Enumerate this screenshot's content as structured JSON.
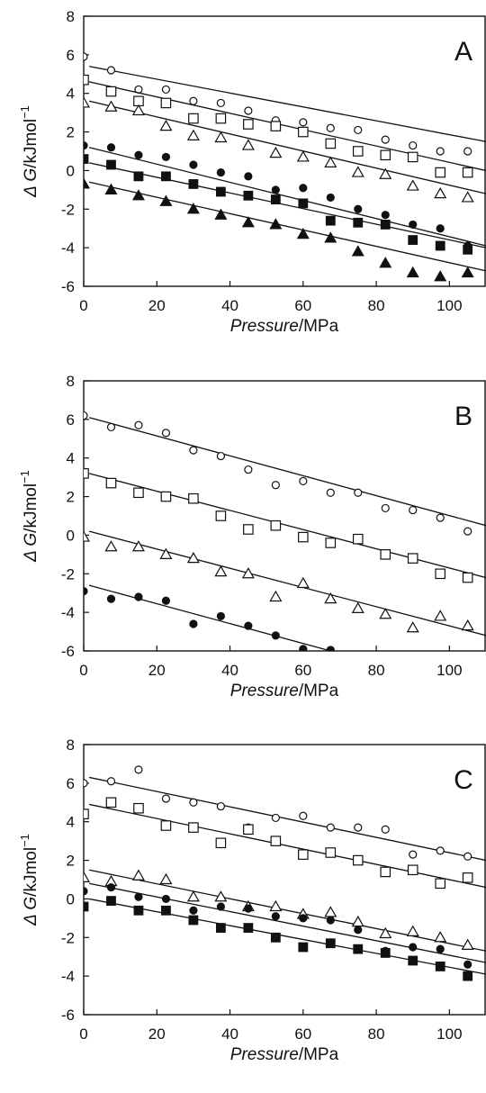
{
  "chart_data": [
    {
      "type": "scatter",
      "panel_label": "A",
      "xlabel_italic": "Pressure",
      "xlabel_unit": "/MPa",
      "ylabel_italic": "Δ G",
      "ylabel_unit": "/kJmol",
      "ylabel_exp": "−1",
      "xlim": [
        0,
        110
      ],
      "ylim": [
        -6,
        8
      ],
      "xticks": [
        "0",
        "20",
        "40",
        "60",
        "80",
        "100"
      ],
      "yticks": [
        "-6",
        "-4",
        "-2",
        "0",
        "2",
        "4",
        "6",
        "8"
      ],
      "grid": false,
      "series": [
        {
          "marker": "circle-open",
          "x": [
            0,
            7.5,
            15,
            22.5,
            30,
            37.5,
            45,
            52.5,
            60,
            67.5,
            75,
            82.5,
            90,
            97.5,
            105
          ],
          "y": [
            5.9,
            5.2,
            4.2,
            4.2,
            3.6,
            3.5,
            3.1,
            2.6,
            2.5,
            2.2,
            2.1,
            1.6,
            1.3,
            1.0,
            1.0
          ],
          "fit": [
            5.4,
            1.5
          ]
        },
        {
          "marker": "square-open",
          "x": [
            0,
            7.5,
            15,
            22.5,
            30,
            37.5,
            45,
            52.5,
            60,
            67.5,
            75,
            82.5,
            90,
            97.5,
            105
          ],
          "y": [
            4.7,
            4.1,
            3.6,
            3.5,
            2.7,
            2.7,
            2.4,
            2.3,
            2.0,
            1.4,
            1.0,
            0.8,
            0.7,
            -0.1,
            -0.1
          ],
          "fit": [
            4.6,
            0.0
          ]
        },
        {
          "marker": "triangle-open",
          "x": [
            0,
            7.5,
            15,
            22.5,
            30,
            37.5,
            45,
            52.5,
            60,
            67.5,
            75,
            82.5,
            90,
            97.5,
            105
          ],
          "y": [
            3.5,
            3.3,
            3.1,
            2.3,
            1.8,
            1.7,
            1.3,
            0.9,
            0.7,
            0.4,
            -0.1,
            -0.2,
            -0.8,
            -1.2,
            -1.4
          ],
          "fit": [
            3.6,
            -1.2
          ]
        },
        {
          "marker": "circle-filled",
          "x": [
            0,
            7.5,
            15,
            22.5,
            30,
            37.5,
            45,
            52.5,
            60,
            67.5,
            75,
            82.5,
            90,
            97.5,
            105
          ],
          "y": [
            1.3,
            1.2,
            0.8,
            0.7,
            0.3,
            -0.1,
            -0.3,
            -1.0,
            -0.9,
            -1.4,
            -2.0,
            -2.3,
            -2.8,
            -3.0,
            -3.9
          ],
          "fit": [
            1.2,
            -3.9
          ]
        },
        {
          "marker": "square-filled",
          "x": [
            0,
            7.5,
            15,
            22.5,
            30,
            37.5,
            45,
            52.5,
            60,
            67.5,
            75,
            82.5,
            90,
            97.5,
            105
          ],
          "y": [
            0.6,
            0.3,
            -0.3,
            -0.3,
            -0.7,
            -1.1,
            -1.3,
            -1.5,
            -1.7,
            -2.6,
            -2.7,
            -2.8,
            -3.6,
            -3.9,
            -4.1
          ],
          "fit": [
            0.4,
            -4.0
          ]
        },
        {
          "marker": "triangle-filled",
          "x": [
            0,
            7.5,
            15,
            22.5,
            30,
            37.5,
            45,
            52.5,
            60,
            67.5,
            75,
            82.5,
            90,
            97.5,
            105
          ],
          "y": [
            -0.7,
            -1.0,
            -1.3,
            -1.6,
            -2.0,
            -2.3,
            -2.7,
            -2.8,
            -3.3,
            -3.5,
            -4.2,
            -4.8,
            -5.3,
            -5.5,
            -5.3
          ],
          "fit": [
            -0.6,
            -5.2
          ]
        }
      ]
    },
    {
      "type": "scatter",
      "panel_label": "B",
      "xlabel_italic": "Pressure",
      "xlabel_unit": "/MPa",
      "ylabel_italic": "Δ G",
      "ylabel_unit": "/kJmol",
      "ylabel_exp": "−1",
      "xlim": [
        0,
        110
      ],
      "ylim": [
        -6,
        8
      ],
      "xticks": [
        "0",
        "20",
        "40",
        "60",
        "80",
        "100"
      ],
      "yticks": [
        "-6",
        "-4",
        "-2",
        "0",
        "2",
        "4",
        "6",
        "8"
      ],
      "grid": false,
      "series": [
        {
          "marker": "circle-open",
          "x": [
            0,
            7.5,
            15,
            22.5,
            30,
            37.5,
            45,
            52.5,
            60,
            67.5,
            75,
            82.5,
            90,
            97.5,
            105
          ],
          "y": [
            6.2,
            5.6,
            5.7,
            5.3,
            4.4,
            4.1,
            3.4,
            2.6,
            2.8,
            2.2,
            2.2,
            1.4,
            1.3,
            0.9,
            0.2
          ],
          "fit": [
            6.1,
            0.5
          ]
        },
        {
          "marker": "square-open",
          "x": [
            0,
            7.5,
            15,
            22.5,
            30,
            37.5,
            45,
            52.5,
            60,
            67.5,
            75,
            82.5,
            90,
            97.5,
            105
          ],
          "y": [
            3.2,
            2.7,
            2.2,
            2.0,
            1.9,
            1.0,
            0.3,
            0.5,
            -0.1,
            -0.4,
            -0.2,
            -1.0,
            -1.2,
            -2.0,
            -2.2
          ],
          "fit": [
            3.2,
            -2.2
          ]
        },
        {
          "marker": "triangle-open",
          "x": [
            0,
            7.5,
            15,
            22.5,
            30,
            37.5,
            45,
            52.5,
            60,
            67.5,
            75,
            82.5,
            90,
            97.5,
            105
          ],
          "y": [
            -0.1,
            -0.6,
            -0.6,
            -1.0,
            -1.2,
            -1.9,
            -2.0,
            -3.2,
            -2.5,
            -3.3,
            -3.8,
            -4.1,
            -4.8,
            -4.2,
            -4.7
          ],
          "fit": [
            0.2,
            -5.2
          ]
        },
        {
          "marker": "circle-filled",
          "x": [
            0,
            7.5,
            15,
            22.5,
            30,
            37.5,
            45,
            52.5,
            60,
            67.5
          ],
          "y": [
            -2.9,
            -3.3,
            -3.2,
            -3.4,
            -4.6,
            -4.2,
            -4.7,
            -5.2,
            -5.9,
            -5.95
          ],
          "fit": [
            -2.6,
            -6.0
          ],
          "fit_x_end": 67.5
        }
      ]
    },
    {
      "type": "scatter",
      "panel_label": "C",
      "xlabel_italic": "Pressure",
      "xlabel_unit": "/MPa",
      "ylabel_italic": "Δ G",
      "ylabel_unit": "/kJmol",
      "ylabel_exp": "−1",
      "xlim": [
        0,
        110
      ],
      "ylim": [
        -6,
        8
      ],
      "xticks": [
        "0",
        "20",
        "40",
        "60",
        "80",
        "100"
      ],
      "yticks": [
        "-6",
        "-4",
        "-2",
        "0",
        "2",
        "4",
        "6",
        "8"
      ],
      "grid": false,
      "series": [
        {
          "marker": "circle-open",
          "x": [
            0,
            7.5,
            15,
            22.5,
            30,
            37.5,
            45,
            52.5,
            60,
            67.5,
            75,
            82.5,
            90,
            97.5,
            105
          ],
          "y": [
            6.0,
            6.1,
            6.7,
            5.2,
            5.0,
            4.8,
            3.7,
            4.2,
            4.3,
            3.7,
            3.7,
            3.6,
            2.3,
            2.5,
            2.2
          ],
          "fit": [
            6.3,
            2.0
          ]
        },
        {
          "marker": "square-open",
          "x": [
            0,
            7.5,
            15,
            22.5,
            30,
            37.5,
            45,
            52.5,
            60,
            67.5,
            75,
            82.5,
            90,
            97.5,
            105
          ],
          "y": [
            4.4,
            5.0,
            4.7,
            3.8,
            3.7,
            2.9,
            3.6,
            3.0,
            2.3,
            2.4,
            2.0,
            1.4,
            1.5,
            0.8,
            1.1
          ],
          "fit": [
            4.9,
            0.6
          ]
        },
        {
          "marker": "triangle-open",
          "x": [
            0,
            7.5,
            15,
            22.5,
            30,
            37.5,
            45,
            52.5,
            60,
            67.5,
            75,
            82.5,
            90,
            97.5,
            105
          ],
          "y": [
            1.1,
            0.9,
            1.2,
            1.0,
            0.1,
            0.1,
            -0.4,
            -0.4,
            -0.8,
            -0.7,
            -1.2,
            -1.8,
            -1.7,
            -2.0,
            -2.4
          ],
          "fit": [
            1.5,
            -2.7
          ]
        },
        {
          "marker": "circle-filled",
          "x": [
            0,
            7.5,
            15,
            22.5,
            30,
            37.5,
            45,
            52.5,
            60,
            67.5,
            75,
            82.5,
            90,
            97.5,
            105
          ],
          "y": [
            0.4,
            0.6,
            0.1,
            0.0,
            -0.6,
            -0.4,
            -0.5,
            -0.9,
            -1.0,
            -1.1,
            -1.6,
            -2.7,
            -2.5,
            -2.6,
            -3.4
          ],
          "fit": [
            0.8,
            -3.3
          ]
        },
        {
          "marker": "square-filled",
          "x": [
            0,
            7.5,
            15,
            22.5,
            30,
            37.5,
            45,
            52.5,
            60,
            67.5,
            75,
            82.5,
            90,
            97.5,
            105
          ],
          "y": [
            -0.4,
            -0.1,
            -0.6,
            -0.6,
            -1.1,
            -1.5,
            -1.5,
            -2.0,
            -2.5,
            -2.3,
            -2.6,
            -2.8,
            -3.2,
            -3.5,
            -4.0
          ],
          "fit": [
            0.0,
            -3.9
          ]
        }
      ]
    }
  ]
}
